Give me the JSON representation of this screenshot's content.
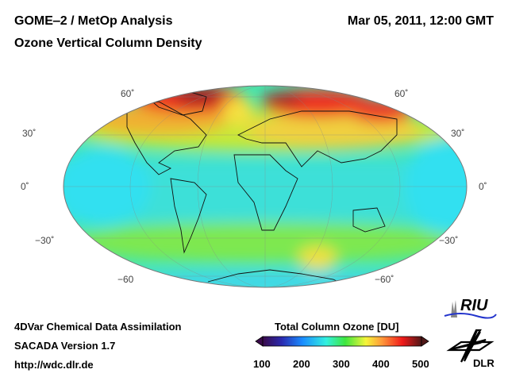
{
  "header": {
    "title": "GOME‒2 / MetOp Analysis",
    "subtitle": "Ozone Vertical Column Density",
    "datetime": "Mar 05, 2011, 12:00 GMT"
  },
  "map": {
    "lat_labels_left": [
      "60˚",
      "30˚",
      "0˚",
      "−30˚",
      "−60"
    ],
    "lat_labels_right": [
      "60˚",
      "30˚",
      "0˚",
      "−30˚",
      "−60˚"
    ]
  },
  "footer": {
    "line1": "4DVar Chemical Data Assimilation",
    "line2": "SACADA Version 1.7",
    "line3": "http://wdc.dlr.de"
  },
  "colorbar": {
    "title": "Total Column Ozone [DU]",
    "ticks": [
      "100",
      "200",
      "300",
      "400",
      "500"
    ],
    "colors": [
      "#3a0a4a",
      "#2a2ab0",
      "#1a8cff",
      "#33f0e0",
      "#3ee63e",
      "#f5f53a",
      "#ff9a3a",
      "#f01a1a",
      "#501818"
    ]
  },
  "logos": {
    "riu": "RIU",
    "dlr": "DLR"
  }
}
